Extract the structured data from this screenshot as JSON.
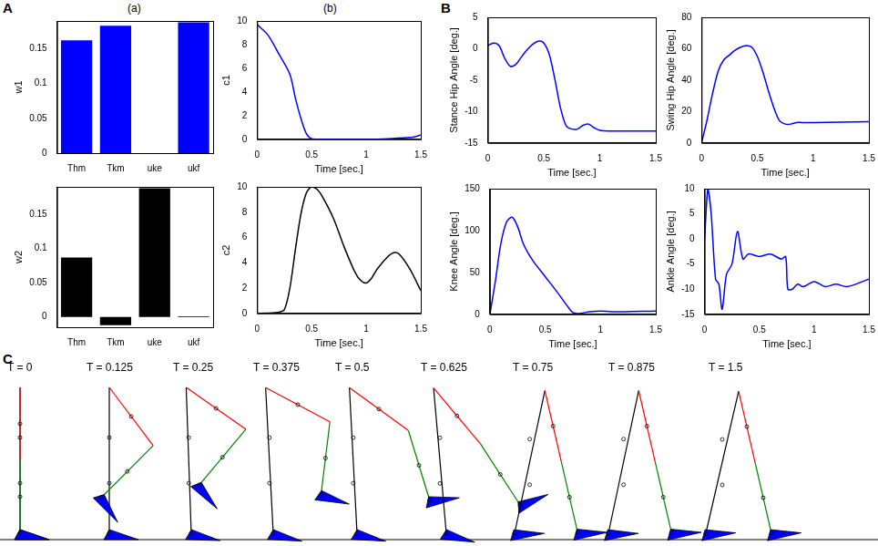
{
  "panel_labels": [
    "A",
    "B",
    "C"
  ],
  "subpanel_labels": [
    "(a)",
    "(b)"
  ],
  "chart_data": [
    {
      "type": "bar",
      "y_label": "w1",
      "categories": [
        "Thm",
        "Tkm",
        "uke",
        "ukf"
      ],
      "values": [
        0.162,
        0.183,
        0,
        0.188
      ],
      "color": "#0000ff",
      "ylim": [
        0,
        0.19
      ],
      "yticks": [
        0,
        0.05,
        0.1,
        0.15
      ],
      "grid": false
    },
    {
      "type": "line",
      "y_label": "c1",
      "x_label": "Time [sec.]",
      "x": [
        0,
        0.1,
        0.2,
        0.3,
        0.35,
        0.4,
        0.45,
        0.5,
        0.6,
        0.8,
        1.0,
        1.2,
        1.4,
        1.5
      ],
      "values": [
        9.7,
        8.8,
        7.2,
        5.5,
        3.5,
        1.8,
        0.5,
        0.05,
        0,
        0,
        0,
        0.05,
        0.15,
        0.35
      ],
      "color": "#0000ff",
      "xlim": [
        0,
        1.5
      ],
      "xticks": [
        0,
        0.5,
        1,
        1.5
      ],
      "ylim": [
        0,
        10
      ],
      "yticks": [
        0,
        2,
        4,
        6,
        8,
        10
      ],
      "grid": false
    },
    {
      "type": "bar",
      "y_label": "w2",
      "categories": [
        "Thm",
        "Tkm",
        "uke",
        "ukf"
      ],
      "values": [
        0.087,
        -0.012,
        0.188,
        0.001
      ],
      "color": "#000000",
      "ylim": [
        -0.015,
        0.19
      ],
      "yticks": [
        0,
        0.05,
        0.1,
        0.15
      ],
      "grid": false
    },
    {
      "type": "line",
      "y_label": "c2",
      "x_label": "Time [sec.]",
      "x": [
        0,
        0.1,
        0.2,
        0.25,
        0.3,
        0.35,
        0.4,
        0.45,
        0.5,
        0.55,
        0.6,
        0.7,
        0.8,
        0.9,
        0.95,
        1.0,
        1.05,
        1.1,
        1.2,
        1.25,
        1.3,
        1.4,
        1.5
      ],
      "values": [
        0,
        0.02,
        0.1,
        0.3,
        2,
        5,
        7.8,
        9.5,
        10,
        9.8,
        9.2,
        7.5,
        5.2,
        3.2,
        2.6,
        2.4,
        2.8,
        3.5,
        4.5,
        4.8,
        4.7,
        3.5,
        1.8
      ],
      "color": "#000000",
      "xlim": [
        0,
        1.5
      ],
      "xticks": [
        0,
        0.5,
        1,
        1.5
      ],
      "ylim": [
        0,
        10
      ],
      "yticks": [
        0,
        2,
        4,
        6,
        8,
        10
      ],
      "grid": false
    },
    {
      "type": "line",
      "y_label": "Stance Hip Angle [deg.]",
      "x_label": "Time [sec.]",
      "x": [
        0,
        0.05,
        0.1,
        0.15,
        0.2,
        0.25,
        0.3,
        0.35,
        0.4,
        0.45,
        0.5,
        0.55,
        0.6,
        0.65,
        0.7,
        0.75,
        0.8,
        0.85,
        0.9,
        0.95,
        1.0,
        1.1,
        1.2,
        1.5
      ],
      "values": [
        0.5,
        0.9,
        0.5,
        -1.5,
        -2.8,
        -2.5,
        -1.3,
        -0.2,
        0.7,
        1.2,
        0.9,
        -1,
        -5,
        -9.5,
        -12.3,
        -12.8,
        -12.8,
        -12.2,
        -12,
        -12.6,
        -13,
        -13.1,
        -13.1,
        -13.1
      ],
      "color": "#0000ff",
      "xlim": [
        0,
        1.5
      ],
      "xticks": [
        0,
        0.5,
        1,
        1.5
      ],
      "ylim": [
        -15,
        5
      ],
      "yticks": [
        -15,
        -10,
        -5,
        0,
        5
      ],
      "grid": false
    },
    {
      "type": "line",
      "y_label": "Swing Hip Angle [deg.]",
      "x_label": "Time [sec.]",
      "x": [
        0,
        0.05,
        0.1,
        0.15,
        0.2,
        0.25,
        0.3,
        0.35,
        0.4,
        0.45,
        0.5,
        0.55,
        0.6,
        0.65,
        0.7,
        0.75,
        0.8,
        0.85,
        0.9,
        1.0,
        1.5
      ],
      "values": [
        0,
        15,
        32,
        46,
        53,
        56,
        59,
        61,
        62,
        61,
        55,
        45,
        33,
        22,
        14,
        12,
        12,
        13,
        13,
        13,
        13.5
      ],
      "color": "#0000ff",
      "xlim": [
        0,
        1.5
      ],
      "xticks": [
        0,
        0.5,
        1,
        1.5
      ],
      "ylim": [
        0,
        80
      ],
      "yticks": [
        0,
        20,
        40,
        60,
        80
      ],
      "grid": false
    },
    {
      "type": "line",
      "y_label": "Knee Angle [deg.]",
      "x_label": "Time [sec.]",
      "x": [
        0,
        0.05,
        0.1,
        0.15,
        0.2,
        0.25,
        0.3,
        0.35,
        0.4,
        0.5,
        0.6,
        0.7,
        0.75,
        0.8,
        0.9,
        1.0,
        1.1,
        1.5
      ],
      "values": [
        0,
        40,
        85,
        110,
        116,
        105,
        85,
        72,
        62,
        45,
        28,
        10,
        2,
        1,
        3,
        4,
        3,
        4
      ],
      "color": "#0000ff",
      "xlim": [
        0,
        1.5
      ],
      "xticks": [
        0,
        0.5,
        1,
        1.5
      ],
      "ylim": [
        0,
        150
      ],
      "yticks": [
        0,
        50,
        100,
        150
      ],
      "grid": false
    },
    {
      "type": "line",
      "y_label": "Ankle Angle [deg.]",
      "x_label": "Time [sec.]",
      "x": [
        0,
        0.03,
        0.06,
        0.1,
        0.13,
        0.16,
        0.2,
        0.25,
        0.3,
        0.35,
        0.4,
        0.5,
        0.6,
        0.7,
        0.74,
        0.76,
        0.8,
        0.85,
        0.9,
        1.0,
        1.1,
        1.2,
        1.3,
        1.5
      ],
      "values": [
        0,
        10,
        5,
        -8,
        -9,
        -14,
        -7,
        -5,
        1.5,
        -4,
        -3,
        -3.5,
        -3,
        -4,
        -3.5,
        -10,
        -10,
        -9,
        -9.5,
        -8.5,
        -9.5,
        -9,
        -9.5,
        -8
      ],
      "color": "#0000ff",
      "xlim": [
        0,
        1.5
      ],
      "xticks": [
        0,
        0.5,
        1,
        1.5
      ],
      "ylim": [
        -15,
        10
      ],
      "yticks": [
        -15,
        -10,
        -5,
        0,
        5,
        10
      ],
      "grid": false
    }
  ],
  "diagram": {
    "frames": [
      {
        "label": "T = 0",
        "stance": 0,
        "thigh": 0,
        "shank": 0
      },
      {
        "label": "T = 0.125",
        "stance": 0,
        "thigh": 37,
        "shank": -45
      },
      {
        "label": "T = 0.25",
        "stance": -2,
        "thigh": 55,
        "shank": -40
      },
      {
        "label": "T = 0.375",
        "stance": -3,
        "thigh": 62,
        "shank": -7
      },
      {
        "label": "T = 0.5",
        "stance": -3,
        "thigh": 54,
        "shank": 17
      },
      {
        "label": "T = 0.625",
        "stance": -5,
        "thigh": 40,
        "shank": 33
      },
      {
        "label": "T = 0.75",
        "stance": 12,
        "thigh": 13,
        "shank": 13
      },
      {
        "label": "T = 0.875",
        "stance": 12,
        "thigh": 13,
        "shank": 13
      },
      {
        "label": "T = 1.5",
        "stance": 13,
        "thigh": 13,
        "shank": 13
      }
    ]
  }
}
